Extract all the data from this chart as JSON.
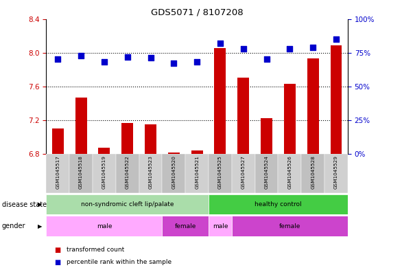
{
  "title": "GDS5071 / 8107208",
  "samples": [
    "GSM1045517",
    "GSM1045518",
    "GSM1045519",
    "GSM1045522",
    "GSM1045523",
    "GSM1045520",
    "GSM1045521",
    "GSM1045525",
    "GSM1045527",
    "GSM1045524",
    "GSM1045526",
    "GSM1045528",
    "GSM1045529"
  ],
  "transformed_count": [
    7.1,
    7.47,
    6.87,
    7.17,
    7.15,
    6.82,
    6.84,
    8.05,
    7.7,
    7.22,
    7.63,
    7.93,
    8.09
  ],
  "percentile_rank": [
    70,
    73,
    68,
    72,
    71,
    67,
    68,
    82,
    78,
    70,
    78,
    79,
    85
  ],
  "ylim_left": [
    6.8,
    8.4
  ],
  "ylim_right": [
    0,
    100
  ],
  "yticks_left": [
    6.8,
    7.2,
    7.6,
    8.0,
    8.4
  ],
  "yticks_right": [
    0,
    25,
    50,
    75,
    100
  ],
  "bar_color": "#cc0000",
  "dot_color": "#0000cc",
  "bar_width": 0.5,
  "dot_size": 30,
  "disease_state_groups": [
    {
      "label": "non-syndromic cleft lip/palate",
      "start": 0,
      "end": 6,
      "color": "#aaddaa"
    },
    {
      "label": "healthy control",
      "start": 7,
      "end": 12,
      "color": "#44cc44"
    }
  ],
  "gender_groups": [
    {
      "label": "male",
      "start": 0,
      "end": 4,
      "color": "#ffaaff"
    },
    {
      "label": "female",
      "start": 5,
      "end": 6,
      "color": "#cc44cc"
    },
    {
      "label": "male",
      "start": 7,
      "end": 7,
      "color": "#ffaaff"
    },
    {
      "label": "female",
      "start": 8,
      "end": 12,
      "color": "#cc44cc"
    }
  ],
  "label_disease_state": "disease state",
  "label_gender": "gender",
  "legend_tc": "transformed count",
  "legend_pr": "percentile rank within the sample",
  "tick_color_left": "#cc0000",
  "tick_color_right": "#0000cc",
  "xticklabel_bg": "#d0d0d0",
  "xticklabel_bg2": "#c0c0c0"
}
